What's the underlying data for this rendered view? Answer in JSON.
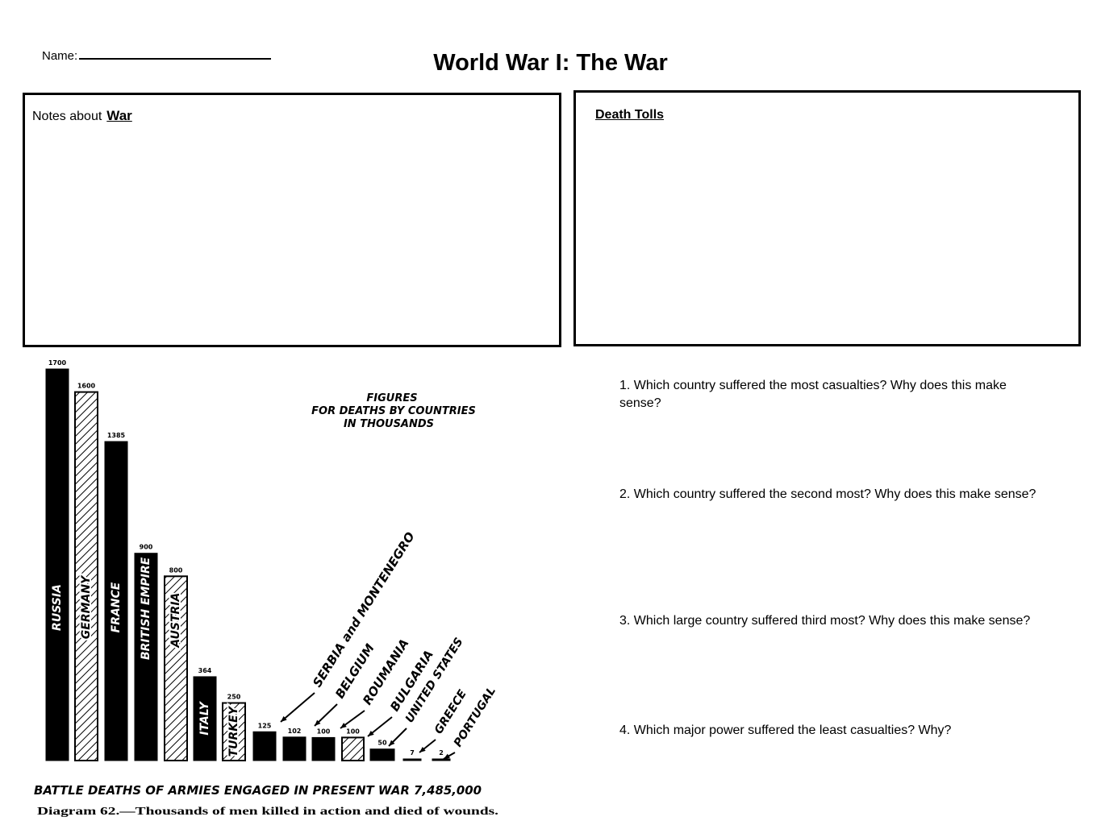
{
  "header": {
    "name_label": "Name:",
    "title": "World War I: The War"
  },
  "notes_box": {
    "label": "Notes about",
    "topic": "War"
  },
  "tolls_box": {
    "label": "Death Tolls"
  },
  "questions": [
    "1. Which country suffered the most  casualties? Why does this make sense?",
    "2. Which country suffered the second most? Why does this make sense?",
    "3. Which large country suffered third most? Why does this make sense?",
    "4. Which major power suffered the least casualties? Why?"
  ],
  "chart_data": {
    "type": "bar",
    "title": [
      "FIGURES",
      "FOR DEATHS BY COUNTRIES",
      "IN THOUSANDS"
    ],
    "footer": "BATTLE DEATHS OF ARMIES ENGAGED IN PRESENT WAR 7,485,000",
    "caption": "Diagram 62.—Thousands of men killed in action and died of wounds.",
    "categories": [
      "RUSSIA",
      "GERMANY",
      "FRANCE",
      "BRITISH EMPIRE",
      "AUSTRIA",
      "ITALY",
      "TURKEY",
      "SERBIA and MONTENEGRO",
      "BELGIUM",
      "ROUMANIA",
      "BULGARIA",
      "UNITED STATES",
      "GREECE",
      "PORTUGAL"
    ],
    "values": [
      1700,
      1600,
      1385,
      900,
      800,
      364,
      250,
      125,
      102,
      100,
      100,
      50,
      7,
      2
    ],
    "value_labels": [
      "1700",
      "1600",
      "1385",
      "900",
      "800",
      "364",
      "250",
      "125",
      "102",
      "100",
      "100",
      "50",
      "7",
      "2"
    ],
    "fill": [
      "solid",
      "hatched",
      "solid",
      "solid",
      "hatched",
      "solid",
      "hatched",
      "solid",
      "solid",
      "solid",
      "hatched",
      "solid",
      "solid",
      "solid"
    ],
    "colors": {
      "solid": "#000000",
      "hatch": "#000000",
      "background": "#ffffff"
    }
  }
}
